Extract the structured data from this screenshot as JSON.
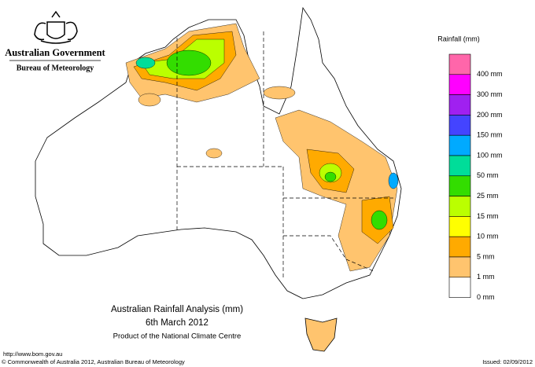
{
  "header": {
    "title": "Australian Government",
    "subtitle": "Bureau of Meteorology"
  },
  "legend": {
    "title": "Rainfall (mm)",
    "items": [
      {
        "label": "400 mm",
        "color": "#ff66aa"
      },
      {
        "label": "300 mm",
        "color": "#ff00ff"
      },
      {
        "label": "200 mm",
        "color": "#a020f0"
      },
      {
        "label": "150 mm",
        "color": "#4444ff"
      },
      {
        "label": "100 mm",
        "color": "#00aaff"
      },
      {
        "label": "50 mm",
        "color": "#00dd99"
      },
      {
        "label": "25 mm",
        "color": "#33dd00"
      },
      {
        "label": "15 mm",
        "color": "#bbff00"
      },
      {
        "label": "10 mm",
        "color": "#ffff00"
      },
      {
        "label": "5 mm",
        "color": "#ffaa00"
      },
      {
        "label": "1 mm",
        "color": "#ffc46e"
      },
      {
        "label": "0 mm",
        "color": "#ffffff"
      }
    ]
  },
  "caption": {
    "title": "Australian Rainfall Analysis (mm)",
    "date": "6th March 2012",
    "credit": "Product of the National Climate Centre"
  },
  "footer": {
    "url": "http://www.bom.gov.au",
    "copyright": "© Commonwealth of Australia 2012, Australian Bureau of Meteorology",
    "issued": "Issued: 02/09/2012"
  }
}
